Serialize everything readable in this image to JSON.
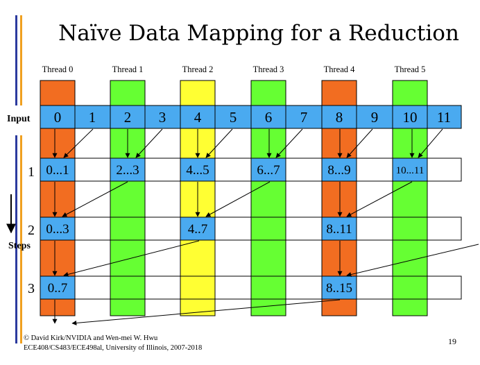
{
  "title": "Naïve Data Mapping for a Reduction",
  "threads": [
    "Thread 0",
    "Thread 1",
    "Thread 2",
    "Thread 3",
    "Thread 4",
    "Thread 5"
  ],
  "input_label": "Input",
  "inputs": [
    "0",
    "1",
    "2",
    "3",
    "4",
    "5",
    "6",
    "7",
    "8",
    "9",
    "10",
    "11"
  ],
  "steps_label": "Steps",
  "step_numbers": [
    "1",
    "2",
    "3"
  ],
  "step1": [
    "0...1",
    "2...3",
    "4...5",
    "6...7",
    "8...9",
    "10...11"
  ],
  "step2": [
    "0...3",
    "4..7",
    "8..11"
  ],
  "step3": [
    "0..7",
    "8..15"
  ],
  "footer": {
    "line1": "© David Kirk/NVIDIA and Wen-mei W. Hwu",
    "line2": "ECE408/CS483/ECE498al, University of Illinois, 2007-2018"
  },
  "page_number": "19",
  "colors": {
    "orange": "#f26d21",
    "green": "#66ff33",
    "yellow": "#ffff33",
    "cell_blue": "#4aaaf0",
    "bar_blue": "#2b3a9e",
    "bar_orange": "#f0a020"
  }
}
